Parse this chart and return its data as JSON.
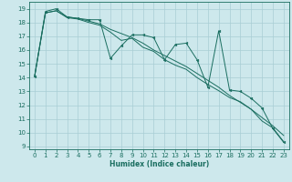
{
  "xlabel": "Humidex (Indice chaleur)",
  "bg_color": "#cde8ec",
  "grid_color": "#a8cdd4",
  "line_color": "#1a6e60",
  "xlim": [
    -0.5,
    23.5
  ],
  "ylim": [
    8.8,
    19.5
  ],
  "yticks": [
    9,
    10,
    11,
    12,
    13,
    14,
    15,
    16,
    17,
    18,
    19
  ],
  "xticks": [
    0,
    1,
    2,
    3,
    4,
    5,
    6,
    7,
    8,
    9,
    10,
    11,
    12,
    13,
    14,
    15,
    16,
    17,
    18,
    19,
    20,
    21,
    22,
    23
  ],
  "series1_x": [
    0,
    1,
    2,
    3,
    4,
    5,
    6,
    7,
    8,
    9,
    10,
    11,
    12,
    13,
    14,
    15,
    16,
    17,
    18,
    19,
    20,
    21,
    22,
    23
  ],
  "series1_y": [
    14.1,
    18.8,
    19.0,
    18.4,
    18.3,
    18.2,
    18.2,
    15.4,
    16.3,
    17.1,
    17.1,
    16.9,
    15.3,
    16.4,
    16.5,
    15.3,
    13.3,
    17.4,
    13.1,
    13.0,
    12.5,
    11.8,
    10.3,
    9.3
  ],
  "series2_x": [
    0,
    1,
    2,
    3,
    4,
    5,
    6,
    7,
    8,
    9,
    10,
    11,
    12,
    13,
    14,
    15,
    16,
    17,
    18,
    19,
    20,
    21,
    22,
    23
  ],
  "series2_y": [
    14.1,
    18.7,
    18.85,
    18.4,
    18.3,
    18.1,
    17.9,
    17.5,
    17.2,
    16.9,
    16.5,
    16.0,
    15.6,
    15.2,
    14.8,
    14.3,
    13.8,
    13.3,
    12.7,
    12.2,
    11.7,
    11.1,
    10.5,
    9.8
  ],
  "series3_x": [
    0,
    1,
    2,
    3,
    4,
    5,
    6,
    7,
    8,
    9,
    10,
    11,
    12,
    13,
    14,
    15,
    16,
    17,
    18,
    19,
    20,
    21,
    22,
    23
  ],
  "series3_y": [
    14.1,
    18.7,
    18.85,
    18.35,
    18.25,
    18.0,
    17.8,
    17.3,
    16.7,
    16.85,
    16.2,
    15.9,
    15.3,
    14.9,
    14.6,
    14.0,
    13.5,
    13.05,
    12.55,
    12.25,
    11.7,
    10.85,
    10.35,
    9.35
  ],
  "xlabel_fontsize": 5.5,
  "tick_fontsize": 5,
  "linewidth": 0.7,
  "marker_size": 2.0
}
